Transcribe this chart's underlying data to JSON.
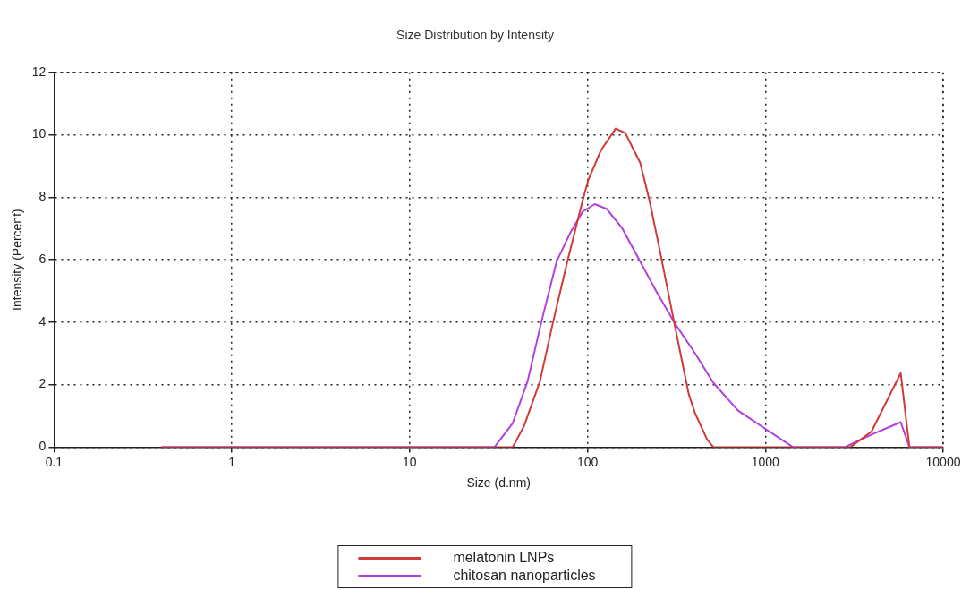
{
  "chart_data": {
    "type": "line",
    "title": "Size Distribution by Intensity",
    "xlabel": "Size (d.nm)",
    "ylabel": "Intensity (Percent)",
    "log": "x",
    "xlim": [
      0.1,
      10000
    ],
    "xticks": [
      0.1,
      1,
      10,
      100,
      1000,
      10000
    ],
    "ylim": [
      0,
      12
    ],
    "yticks": [
      0,
      2,
      4,
      6,
      8,
      10,
      12
    ],
    "grid": true,
    "legend": "bottom",
    "marker": "none",
    "line_style": "solid",
    "series": [
      {
        "name": "melatonin LNPs",
        "color": "#d03a3a",
        "x": [
          0.4,
          38,
          44,
          54,
          64,
          77,
          94,
          101,
          119,
          144,
          163,
          198,
          223,
          251,
          307,
          371,
          403,
          470,
          510,
          3010,
          3955,
          5770,
          6460,
          10000
        ],
        "values": [
          0,
          0,
          0.68,
          2.1,
          4.0,
          5.94,
          7.9,
          8.55,
          9.5,
          10.2,
          10.06,
          9.1,
          7.9,
          6.5,
          4.0,
          1.7,
          1.08,
          0.25,
          0,
          0,
          0.5,
          2.37,
          0,
          0
        ]
      },
      {
        "name": "chitosan nanoparticles",
        "color": "#b040e0",
        "x": [
          0.4,
          30,
          38,
          46,
          55,
          67,
          80,
          94,
          110,
          128,
          157,
          198,
          243,
          307,
          403,
          510,
          703,
          1040,
          1430,
          2800,
          3955,
          5770,
          6460,
          10000
        ],
        "values": [
          0,
          0,
          0.77,
          2.1,
          4.0,
          5.94,
          6.86,
          7.54,
          7.78,
          7.63,
          7.0,
          5.94,
          5.0,
          4.0,
          3.0,
          2.06,
          1.17,
          0.52,
          0,
          0,
          0.4,
          0.8,
          0,
          0
        ]
      }
    ]
  }
}
